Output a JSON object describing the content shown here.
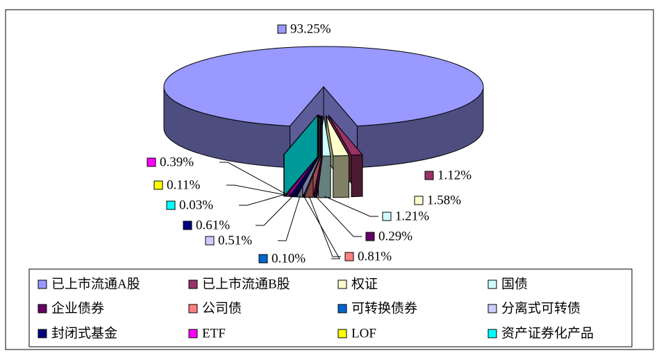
{
  "chart_data": {
    "type": "pie",
    "categories": [
      "已上市流通A股",
      "已上市流通B股",
      "权证",
      "国债",
      "企业债券",
      "公司债",
      "可转换债券",
      "分离式可转债",
      "封闭式基金",
      "ETF",
      "LOF",
      "资产证券化产品"
    ],
    "values": [
      93.25,
      1.12,
      1.58,
      1.21,
      0.29,
      0.81,
      0.1,
      0.51,
      0.61,
      0.39,
      0.11,
      0.03
    ],
    "value_labels": [
      "93.25%",
      "1.12%",
      "1.58%",
      "1.21%",
      "0.29%",
      "0.81%",
      "0.10%",
      "0.51%",
      "0.61%",
      "0.39%",
      "0.11%",
      "0.03%"
    ],
    "colors": [
      "#9999FF",
      "#993366",
      "#FFFFCC",
      "#CCFFFF",
      "#660066",
      "#FF8080",
      "#0066CC",
      "#CCCCFF",
      "#000080",
      "#FF00FF",
      "#FFFF00",
      "#00FFFF"
    ],
    "legend": "bottom"
  }
}
